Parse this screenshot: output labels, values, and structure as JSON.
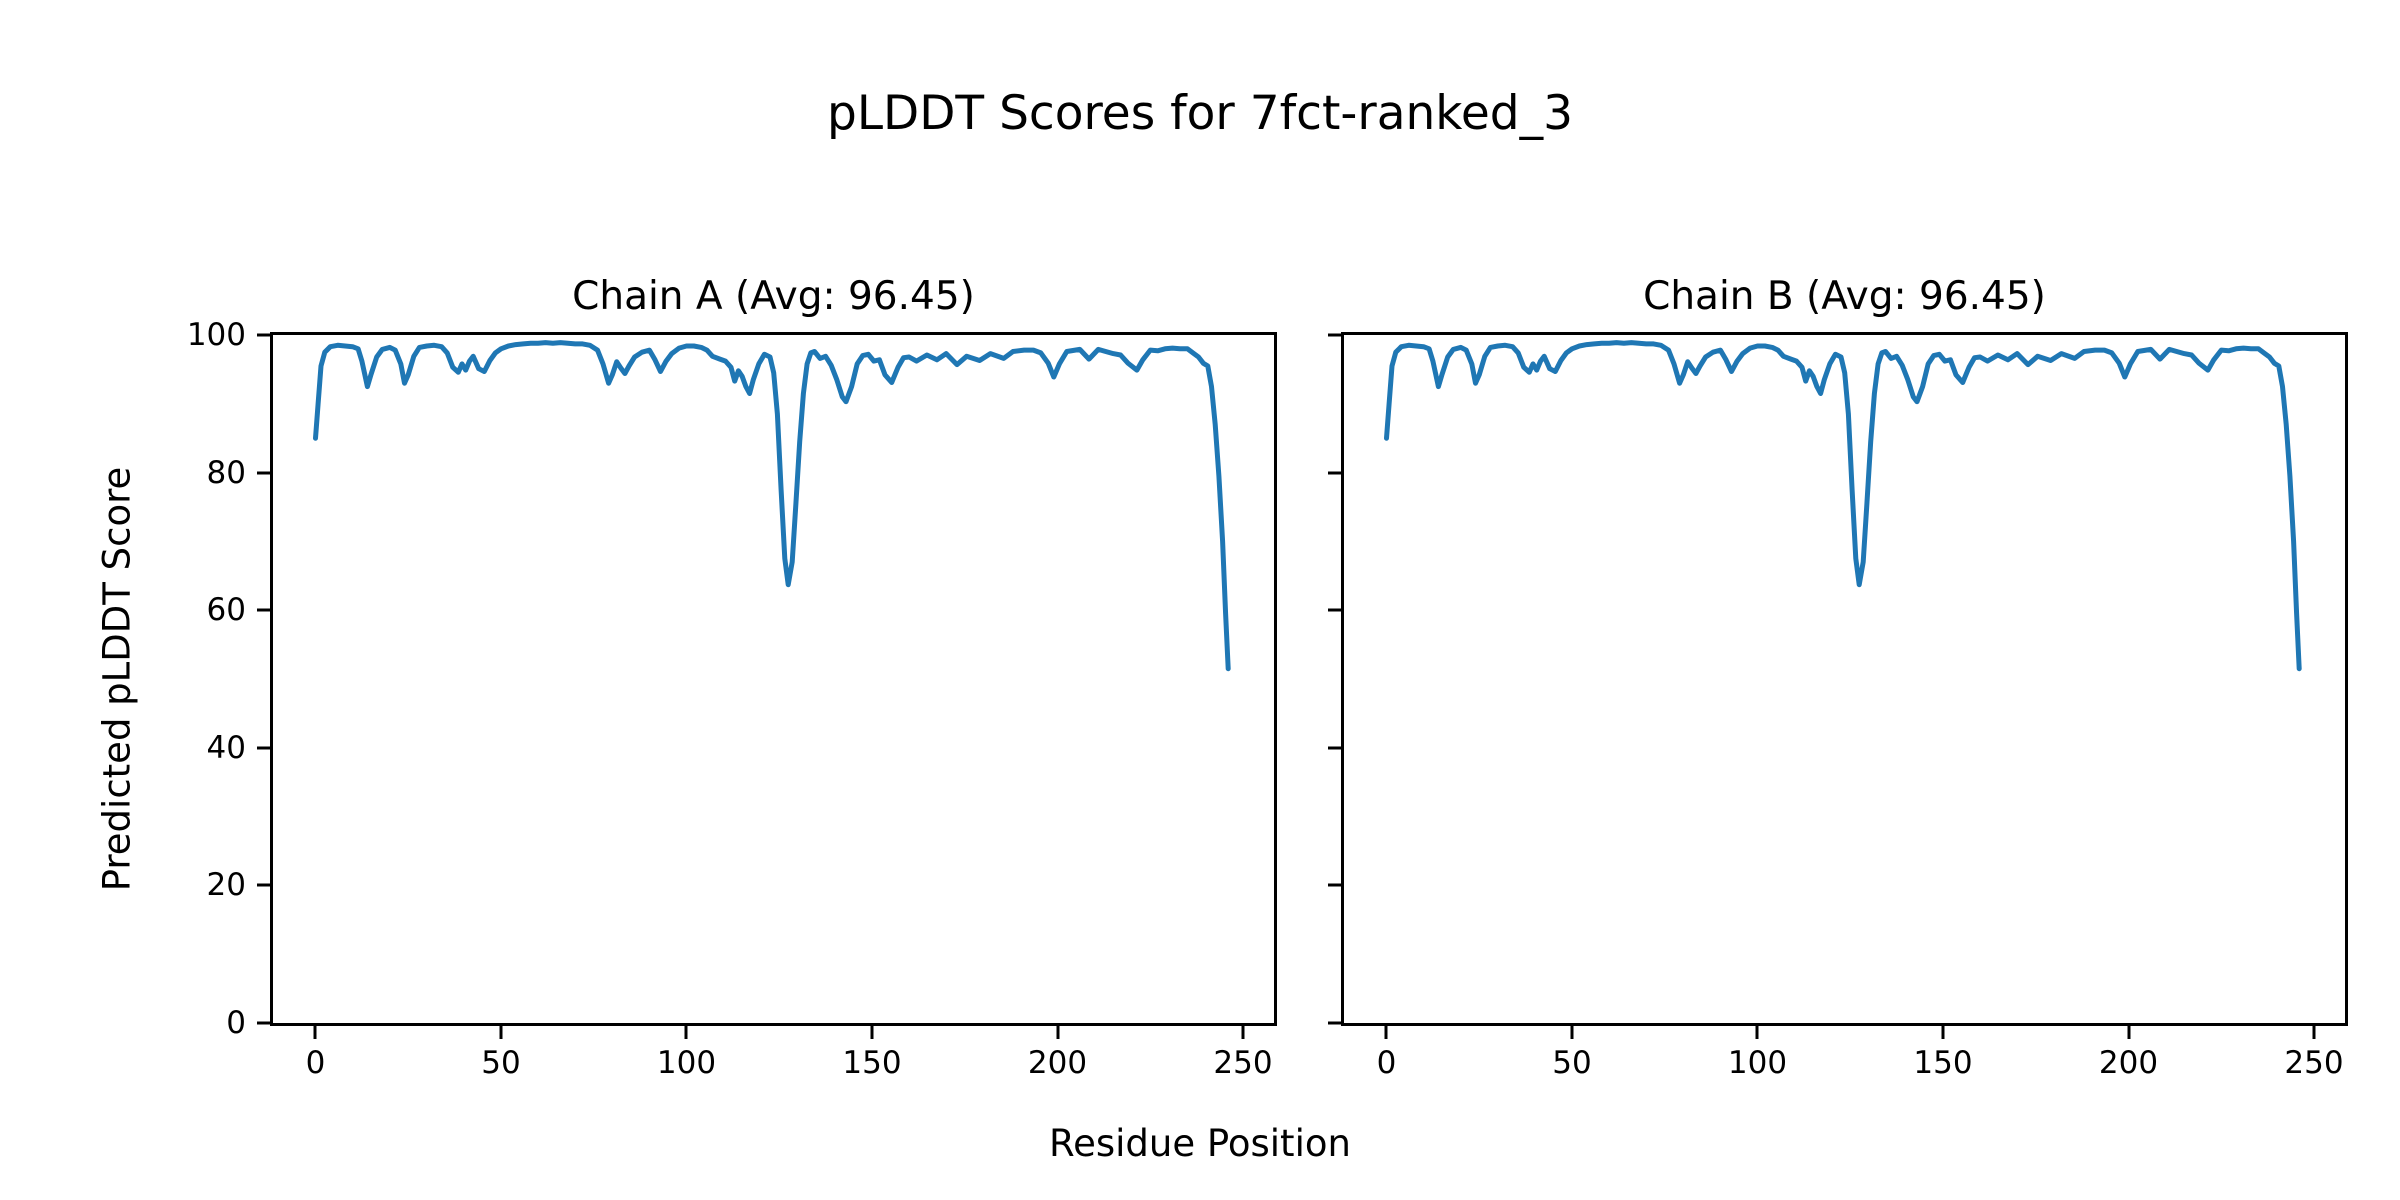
{
  "figure": {
    "title": "pLDDT Scores for 7fct-ranked_3",
    "xlabel": "Residue Position",
    "ylabel": "Predicted pLDDT Score",
    "background_color": "#ffffff",
    "line_color": "#1f77b4"
  },
  "chart_data": [
    {
      "type": "line",
      "title": "Chain A (Avg: 96.45)",
      "chain": "A",
      "avg_plddt": 96.45,
      "line_color": "#1f77b4",
      "grid": false,
      "xlim": [
        -11.45,
        258.35
      ],
      "ylim": [
        0,
        100
      ],
      "xticks": [
        0,
        50,
        100,
        150,
        200,
        250
      ],
      "yticks": [
        0,
        20,
        40,
        60,
        80,
        100
      ],
      "show_ytick_labels": true,
      "points": [
        [
          0,
          85
        ],
        [
          0.7,
          90
        ],
        [
          1.5,
          95.5
        ],
        [
          2.5,
          97.5
        ],
        [
          4,
          98.3
        ],
        [
          6,
          98.5
        ],
        [
          8,
          98.4
        ],
        [
          10,
          98.3
        ],
        [
          11.5,
          98.0
        ],
        [
          12.5,
          96.2
        ],
        [
          14,
          92.5
        ],
        [
          15,
          94.3
        ],
        [
          16.5,
          96.8
        ],
        [
          18,
          97.9
        ],
        [
          20,
          98.2
        ],
        [
          21.5,
          97.8
        ],
        [
          23,
          95.8
        ],
        [
          24,
          93.0
        ],
        [
          25,
          94.2
        ],
        [
          26.5,
          96.9
        ],
        [
          28,
          98.2
        ],
        [
          30,
          98.4
        ],
        [
          32,
          98.5
        ],
        [
          34,
          98.3
        ],
        [
          35.5,
          97.4
        ],
        [
          37,
          95.3
        ],
        [
          38.5,
          94.6
        ],
        [
          39.5,
          95.8
        ],
        [
          40.5,
          94.9
        ],
        [
          41.5,
          96.2
        ],
        [
          42.5,
          96.9
        ],
        [
          44,
          95.1
        ],
        [
          45.5,
          94.7
        ],
        [
          47,
          96.3
        ],
        [
          48.5,
          97.4
        ],
        [
          50,
          98.0
        ],
        [
          52,
          98.4
        ],
        [
          54,
          98.6
        ],
        [
          56,
          98.7
        ],
        [
          58,
          98.8
        ],
        [
          60,
          98.8
        ],
        [
          62,
          98.9
        ],
        [
          64,
          98.8
        ],
        [
          66,
          98.9
        ],
        [
          68,
          98.8
        ],
        [
          70,
          98.7
        ],
        [
          72,
          98.7
        ],
        [
          74,
          98.5
        ],
        [
          76,
          97.8
        ],
        [
          77.5,
          95.8
        ],
        [
          79,
          93.0
        ],
        [
          80,
          94.2
        ],
        [
          81.2,
          96.1
        ],
        [
          82.3,
          95.2
        ],
        [
          83.4,
          94.4
        ],
        [
          84.5,
          95.5
        ],
        [
          86,
          96.8
        ],
        [
          88,
          97.5
        ],
        [
          90,
          97.8
        ],
        [
          91.5,
          96.4
        ],
        [
          93,
          94.7
        ],
        [
          94.5,
          96.2
        ],
        [
          96,
          97.3
        ],
        [
          98,
          98.1
        ],
        [
          100,
          98.4
        ],
        [
          102,
          98.4
        ],
        [
          104,
          98.2
        ],
        [
          105.5,
          97.8
        ],
        [
          107,
          96.9
        ],
        [
          109,
          96.5
        ],
        [
          110.5,
          96.2
        ],
        [
          112,
          95.3
        ],
        [
          113,
          93.3
        ],
        [
          114,
          94.8
        ],
        [
          115,
          94.0
        ],
        [
          116,
          92.5
        ],
        [
          117,
          91.5
        ],
        [
          118,
          93.5
        ],
        [
          119.5,
          95.8
        ],
        [
          121,
          97.2
        ],
        [
          122.5,
          96.8
        ],
        [
          123.5,
          94.5
        ],
        [
          124.5,
          88.5
        ],
        [
          125.5,
          77.5
        ],
        [
          126.5,
          67.5
        ],
        [
          127.4,
          63.7
        ],
        [
          128.5,
          67.0
        ],
        [
          129.5,
          75.5
        ],
        [
          130.5,
          84.5
        ],
        [
          131.5,
          91.5
        ],
        [
          132.5,
          95.8
        ],
        [
          133.5,
          97.4
        ],
        [
          134.5,
          97.6
        ],
        [
          136,
          96.6
        ],
        [
          137.5,
          96.9
        ],
        [
          139,
          95.6
        ],
        [
          140.5,
          93.5
        ],
        [
          142,
          91.0
        ],
        [
          143,
          90.3
        ],
        [
          144.5,
          92.5
        ],
        [
          146,
          95.8
        ],
        [
          147.5,
          97.0
        ],
        [
          149,
          97.2
        ],
        [
          150.5,
          96.2
        ],
        [
          152,
          96.4
        ],
        [
          153.5,
          94.2
        ],
        [
          155.3,
          93.1
        ],
        [
          157,
          95.3
        ],
        [
          158.5,
          96.7
        ],
        [
          160,
          96.8
        ],
        [
          162,
          96.2
        ],
        [
          164.8,
          97.1
        ],
        [
          167.5,
          96.4
        ],
        [
          170,
          97.3
        ],
        [
          172.9,
          95.7
        ],
        [
          175.5,
          96.9
        ],
        [
          179,
          96.3
        ],
        [
          181.9,
          97.3
        ],
        [
          185.5,
          96.6
        ],
        [
          188,
          97.6
        ],
        [
          191,
          97.8
        ],
        [
          193.5,
          97.8
        ],
        [
          195.5,
          97.4
        ],
        [
          197.5,
          95.9
        ],
        [
          199,
          93.9
        ],
        [
          200.5,
          95.8
        ],
        [
          202.5,
          97.6
        ],
        [
          206,
          97.9
        ],
        [
          208.5,
          96.5
        ],
        [
          211,
          97.9
        ],
        [
          213,
          97.6
        ],
        [
          215,
          97.3
        ],
        [
          217,
          97.1
        ],
        [
          219,
          95.9
        ],
        [
          221.4,
          94.9
        ],
        [
          223,
          96.4
        ],
        [
          225,
          97.8
        ],
        [
          227,
          97.7
        ],
        [
          229,
          98.0
        ],
        [
          231,
          98.1
        ],
        [
          233,
          98.0
        ],
        [
          235,
          98.0
        ],
        [
          236.5,
          97.4
        ],
        [
          238,
          96.8
        ],
        [
          239.3,
          95.9
        ],
        [
          240.5,
          95.5
        ],
        [
          241.5,
          92.5
        ],
        [
          242.5,
          87.0
        ],
        [
          243.5,
          79.5
        ],
        [
          244.5,
          70.0
        ],
        [
          245.3,
          59.5
        ],
        [
          246,
          51.5
        ]
      ]
    },
    {
      "type": "line",
      "title": "Chain B (Avg: 96.45)",
      "chain": "B",
      "avg_plddt": 96.45,
      "line_color": "#1f77b4",
      "grid": false,
      "xlim": [
        -11.45,
        258.35
      ],
      "ylim": [
        0,
        100
      ],
      "xticks": [
        0,
        50,
        100,
        150,
        200,
        250
      ],
      "yticks": [
        0,
        20,
        40,
        60,
        80,
        100
      ],
      "show_ytick_labels": false,
      "points": [
        [
          0,
          85
        ],
        [
          0.7,
          90
        ],
        [
          1.5,
          95.5
        ],
        [
          2.5,
          97.5
        ],
        [
          4,
          98.3
        ],
        [
          6,
          98.5
        ],
        [
          8,
          98.4
        ],
        [
          10,
          98.3
        ],
        [
          11.5,
          98.0
        ],
        [
          12.5,
          96.2
        ],
        [
          14,
          92.5
        ],
        [
          15,
          94.3
        ],
        [
          16.5,
          96.8
        ],
        [
          18,
          97.9
        ],
        [
          20,
          98.2
        ],
        [
          21.5,
          97.8
        ],
        [
          23,
          95.8
        ],
        [
          24,
          93.0
        ],
        [
          25,
          94.2
        ],
        [
          26.5,
          96.9
        ],
        [
          28,
          98.2
        ],
        [
          30,
          98.4
        ],
        [
          32,
          98.5
        ],
        [
          34,
          98.3
        ],
        [
          35.5,
          97.4
        ],
        [
          37,
          95.3
        ],
        [
          38.5,
          94.6
        ],
        [
          39.5,
          95.8
        ],
        [
          40.5,
          94.9
        ],
        [
          41.5,
          96.2
        ],
        [
          42.5,
          96.9
        ],
        [
          44,
          95.1
        ],
        [
          45.5,
          94.7
        ],
        [
          47,
          96.3
        ],
        [
          48.5,
          97.4
        ],
        [
          50,
          98.0
        ],
        [
          52,
          98.4
        ],
        [
          54,
          98.6
        ],
        [
          56,
          98.7
        ],
        [
          58,
          98.8
        ],
        [
          60,
          98.8
        ],
        [
          62,
          98.9
        ],
        [
          64,
          98.8
        ],
        [
          66,
          98.9
        ],
        [
          68,
          98.8
        ],
        [
          70,
          98.7
        ],
        [
          72,
          98.7
        ],
        [
          74,
          98.5
        ],
        [
          76,
          97.8
        ],
        [
          77.5,
          95.8
        ],
        [
          79,
          93.0
        ],
        [
          80,
          94.2
        ],
        [
          81.2,
          96.1
        ],
        [
          82.3,
          95.2
        ],
        [
          83.4,
          94.4
        ],
        [
          84.5,
          95.5
        ],
        [
          86,
          96.8
        ],
        [
          88,
          97.5
        ],
        [
          90,
          97.8
        ],
        [
          91.5,
          96.4
        ],
        [
          93,
          94.7
        ],
        [
          94.5,
          96.2
        ],
        [
          96,
          97.3
        ],
        [
          98,
          98.1
        ],
        [
          100,
          98.4
        ],
        [
          102,
          98.4
        ],
        [
          104,
          98.2
        ],
        [
          105.5,
          97.8
        ],
        [
          107,
          96.9
        ],
        [
          109,
          96.5
        ],
        [
          110.5,
          96.2
        ],
        [
          112,
          95.3
        ],
        [
          113,
          93.3
        ],
        [
          114,
          94.8
        ],
        [
          115,
          94.0
        ],
        [
          116,
          92.5
        ],
        [
          117,
          91.5
        ],
        [
          118,
          93.5
        ],
        [
          119.5,
          95.8
        ],
        [
          121,
          97.2
        ],
        [
          122.5,
          96.8
        ],
        [
          123.5,
          94.5
        ],
        [
          124.5,
          88.5
        ],
        [
          125.5,
          77.5
        ],
        [
          126.5,
          67.5
        ],
        [
          127.4,
          63.7
        ],
        [
          128.5,
          67.0
        ],
        [
          129.5,
          75.5
        ],
        [
          130.5,
          84.5
        ],
        [
          131.5,
          91.5
        ],
        [
          132.5,
          95.8
        ],
        [
          133.5,
          97.4
        ],
        [
          134.5,
          97.6
        ],
        [
          136,
          96.6
        ],
        [
          137.5,
          96.9
        ],
        [
          139,
          95.6
        ],
        [
          140.5,
          93.5
        ],
        [
          142,
          91.0
        ],
        [
          143,
          90.3
        ],
        [
          144.5,
          92.5
        ],
        [
          146,
          95.8
        ],
        [
          147.5,
          97.0
        ],
        [
          149,
          97.2
        ],
        [
          150.5,
          96.2
        ],
        [
          152,
          96.4
        ],
        [
          153.5,
          94.2
        ],
        [
          155.3,
          93.1
        ],
        [
          157,
          95.3
        ],
        [
          158.5,
          96.7
        ],
        [
          160,
          96.8
        ],
        [
          162,
          96.2
        ],
        [
          164.8,
          97.1
        ],
        [
          167.5,
          96.4
        ],
        [
          170,
          97.3
        ],
        [
          172.9,
          95.7
        ],
        [
          175.5,
          96.9
        ],
        [
          179,
          96.3
        ],
        [
          181.9,
          97.3
        ],
        [
          185.5,
          96.6
        ],
        [
          188,
          97.6
        ],
        [
          191,
          97.8
        ],
        [
          193.5,
          97.8
        ],
        [
          195.5,
          97.4
        ],
        [
          197.5,
          95.9
        ],
        [
          199,
          93.9
        ],
        [
          200.5,
          95.8
        ],
        [
          202.5,
          97.6
        ],
        [
          206,
          97.9
        ],
        [
          208.5,
          96.5
        ],
        [
          211,
          97.9
        ],
        [
          213,
          97.6
        ],
        [
          215,
          97.3
        ],
        [
          217,
          97.1
        ],
        [
          219,
          95.9
        ],
        [
          221.4,
          94.9
        ],
        [
          223,
          96.4
        ],
        [
          225,
          97.8
        ],
        [
          227,
          97.7
        ],
        [
          229,
          98.0
        ],
        [
          231,
          98.1
        ],
        [
          233,
          98.0
        ],
        [
          235,
          98.0
        ],
        [
          236.5,
          97.4
        ],
        [
          238,
          96.8
        ],
        [
          239.3,
          95.9
        ],
        [
          240.5,
          95.5
        ],
        [
          241.5,
          92.5
        ],
        [
          242.5,
          87.0
        ],
        [
          243.5,
          79.5
        ],
        [
          244.5,
          70.0
        ],
        [
          245.3,
          59.5
        ],
        [
          246,
          51.5
        ]
      ]
    }
  ]
}
